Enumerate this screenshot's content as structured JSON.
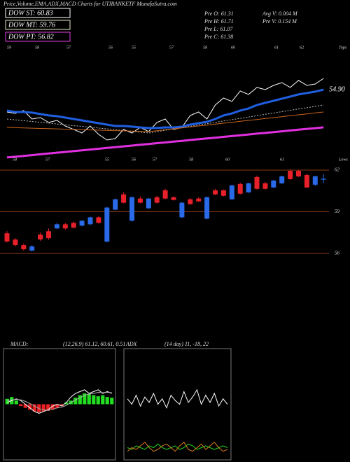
{
  "header": {
    "title": "Price,Volume,EMA,ADX,MACD Charts for UTIBANKETF MunafaSutra.com",
    "legend": [
      {
        "label": "DOW ST: 60.83",
        "color": "#ffffff"
      },
      {
        "label": "DOW MT: 59.76",
        "color": "#e8e8c8"
      },
      {
        "label": "DOW PT: 56.82",
        "color": "#e040e0"
      }
    ],
    "info": [
      [
        "Pre O: 61.31",
        "Pre H: 61.71",
        "Pre L: 61.07",
        "Pre C: 61.38"
      ],
      [
        "Avg V: 0.004  M",
        "Pre V: 0.154  M"
      ]
    ]
  },
  "chart_data": [
    {
      "type": "line",
      "ylim": [
        46.5,
        60
      ],
      "top_note": "Tops",
      "bottom_note": "Lows",
      "top_labels": [
        "59",
        "58",
        "57",
        "56",
        "55",
        "57",
        "58",
        "60",
        "61",
        "62"
      ],
      "bottom_labels": [
        "58",
        "57",
        "55",
        "56",
        "57",
        "58",
        "60",
        "61"
      ],
      "series": [
        {
          "color": "#ffffff",
          "values": [
            52.5,
            52.35,
            52.65,
            51.75,
            51.9,
            51.38,
            51.6,
            51,
            50.63,
            50.25,
            51,
            50.1,
            49.5,
            49.65,
            50.63,
            50.25,
            50.85,
            50.4,
            51.38,
            51.75,
            50.63,
            50.85,
            52.13,
            52.5,
            51.75,
            53.25,
            54,
            53.63,
            54.75,
            54.38,
            55.13,
            54.9,
            55.35,
            55.65,
            55.13,
            55.88,
            55.35,
            55.5,
            56.1
          ]
        },
        {
          "color": "#1f5fe0",
          "width": 3,
          "end_label": "54.90",
          "values": [
            52.65,
            52.5,
            52.5,
            52.43,
            52.28,
            52.13,
            52.05,
            51.9,
            51.75,
            51.6,
            51.45,
            51.3,
            51.15,
            51,
            51,
            50.93,
            50.85,
            50.78,
            50.78,
            50.85,
            50.85,
            50.93,
            51.15,
            51.3,
            51.45,
            51.75,
            52.13,
            52.35,
            52.65,
            52.88,
            53.25,
            53.48,
            53.7,
            53.93,
            54.15,
            54.38,
            54.53,
            54.68,
            54.9
          ]
        },
        {
          "color": "#bbbbbb",
          "dashed": true,
          "values": [
            51.75,
            51.66,
            51.57,
            51.49,
            51.4,
            51.31,
            51.22,
            51.13,
            51.04,
            50.96,
            50.87,
            50.78,
            50.69,
            50.6,
            50.51,
            50.43,
            50.34,
            50.25,
            50.39,
            50.54,
            50.68,
            50.82,
            50.96,
            51.11,
            51.25,
            51.39,
            51.54,
            51.68,
            51.82,
            51.96,
            52.11,
            52.25,
            52.39,
            52.54,
            52.68,
            52.82,
            52.96,
            53.11,
            53.25
          ]
        },
        {
          "color": "#c8641e",
          "values": [
            50.85,
            50.82,
            50.8,
            50.77,
            50.74,
            50.72,
            50.69,
            50.66,
            50.64,
            50.61,
            50.58,
            50.56,
            50.53,
            50.5,
            50.48,
            50.45,
            50.42,
            50.4,
            50.5,
            50.6,
            50.7,
            50.8,
            50.9,
            51,
            51.1,
            51.2,
            51.3,
            51.4,
            51.5,
            51.6,
            51.7,
            51.8,
            51.9,
            52,
            52.1,
            52.2,
            52.3,
            52.4,
            52.5
          ]
        },
        {
          "color": "#e030e0",
          "width": 3,
          "values": [
            47.63,
            47.71,
            47.8,
            47.88,
            47.97,
            48.05,
            48.14,
            48.22,
            48.31,
            48.39,
            48.48,
            48.56,
            48.65,
            48.73,
            48.82,
            48.9,
            48.99,
            49.07,
            49.16,
            49.24,
            49.33,
            49.41,
            49.5,
            49.58,
            49.67,
            49.75,
            49.84,
            49.92,
            50.01,
            50.09,
            50.18,
            50.26,
            50.35,
            50.43,
            50.52,
            50.6,
            50.69,
            50.77,
            50.86
          ]
        }
      ]
    },
    {
      "type": "candlestick",
      "ylim": [
        56,
        62
      ],
      "yticks": [
        56,
        59,
        62
      ],
      "up_color": "#2a6ae8",
      "down_color": "#e8202a",
      "grid_color": "#8a3a14",
      "open": [
        57.45,
        57,
        56.6,
        56.2,
        57.35,
        57.6,
        57.8,
        58.1,
        58.2,
        58,
        58.1,
        58.6,
        56.85,
        59.15,
        60.25,
        58.35,
        59.95,
        59.25,
        60.05,
        60.55,
        60.05,
        58.6,
        59.9,
        59.95,
        58.5,
        60.55,
        60.55,
        59.9,
        61,
        60.4,
        61.5,
        61.05,
        60.75,
        61.05,
        61.95,
        61.95,
        61.65,
        60.95,
        61.31
      ],
      "high": [
        57.6,
        57.1,
        56.7,
        56.6,
        57.5,
        57.8,
        58.2,
        58.2,
        58.3,
        58.4,
        58.65,
        58.7,
        59.35,
        59.95,
        60.4,
        60.1,
        60.1,
        60,
        60.15,
        60.65,
        60.1,
        59.7,
        60,
        60.05,
        60.1,
        60.65,
        60.6,
        60.95,
        61.1,
        61.1,
        61.6,
        61.15,
        61.3,
        61.6,
        62.05,
        62,
        61.75,
        61.6,
        61.71
      ],
      "low": [
        56.8,
        56.5,
        56.2,
        56.15,
        56.9,
        57,
        57.75,
        57.7,
        57.8,
        57.95,
        58.05,
        58.15,
        56.8,
        59.1,
        59.6,
        58.3,
        59.6,
        59.2,
        59.6,
        59.9,
        59.8,
        58.55,
        59.5,
        59.7,
        58.45,
        60.2,
        60.1,
        59.85,
        60.25,
        60.35,
        60.6,
        60.6,
        60.7,
        61,
        61.3,
        61.5,
        60.7,
        60.85,
        61.07
      ],
      "close": [
        56.85,
        56.6,
        56.3,
        56.5,
        57,
        57.1,
        58.1,
        57.8,
        57.85,
        58.35,
        58.6,
        58.2,
        59.3,
        59.9,
        59.65,
        60.05,
        59.65,
        59.95,
        59.65,
        59.95,
        59.85,
        59.65,
        59.55,
        59.75,
        60.05,
        60.25,
        60.15,
        60.9,
        60.3,
        61.05,
        60.65,
        60.65,
        61.25,
        61.55,
        61.35,
        61.55,
        60.75,
        61.55,
        61.38
      ]
    },
    {
      "type": "macd",
      "title": "MACD:",
      "params": "(12,26,9) 61.12, 60.61, 0.51",
      "ylim": [
        -1.5,
        1.5
      ],
      "up_color": "#22dd22",
      "down_color": "#ee2222",
      "histogram": [
        0.15,
        0.2,
        0.1,
        -0.05,
        -0.1,
        -0.15,
        -0.2,
        -0.22,
        -0.2,
        -0.18,
        -0.15,
        -0.1,
        -0.05,
        0.05,
        0.1,
        0.18,
        0.25,
        0.3,
        0.28,
        0.25,
        0.22,
        0.25,
        0.2,
        0.18
      ],
      "series": [
        {
          "color": "#ffffff",
          "values": [
            0.05,
            0.1,
            0.15,
            0.1,
            0,
            -0.1,
            -0.2,
            -0.25,
            -0.2,
            -0.15,
            -0.05,
            0,
            -0.05,
            0.05,
            0.2,
            0.3,
            0.35,
            0.4,
            0.3,
            0.35,
            0.4,
            0.3,
            0.35,
            0.3
          ]
        },
        {
          "color": "#aaaaaa",
          "values": [
            0.1,
            0.12,
            0.13,
            0.12,
            0.08,
            0.02,
            -0.05,
            -0.12,
            -0.16,
            -0.17,
            -0.14,
            -0.1,
            -0.08,
            -0.03,
            0.05,
            0.12,
            0.18,
            0.25,
            0.28,
            0.3,
            0.33,
            0.32,
            0.33,
            0.32
          ]
        }
      ]
    },
    {
      "type": "adx",
      "title": "ADX",
      "params": "(14 day) 11, -18, 22",
      "ylim": [
        0,
        60
      ],
      "series": [
        {
          "color": "#ffffff",
          "values": [
            33,
            30,
            35,
            29,
            34,
            31,
            36,
            30,
            33,
            28,
            35,
            32,
            30,
            37,
            31,
            34,
            38,
            30,
            35,
            31,
            36,
            29,
            33,
            30
          ]
        },
        {
          "color": "#22dd22",
          "values": [
            6,
            5,
            7,
            6,
            5,
            7,
            6,
            8,
            6,
            5,
            6,
            7,
            5,
            6,
            8,
            7,
            5,
            6,
            7,
            6,
            5,
            6,
            7,
            6
          ]
        },
        {
          "color": "#e08020",
          "values": [
            4,
            6,
            5,
            7,
            9,
            6,
            4,
            5,
            7,
            8,
            6,
            4,
            7,
            9,
            5,
            4,
            6,
            8,
            5,
            7,
            9,
            6,
            4,
            5
          ]
        }
      ]
    }
  ]
}
